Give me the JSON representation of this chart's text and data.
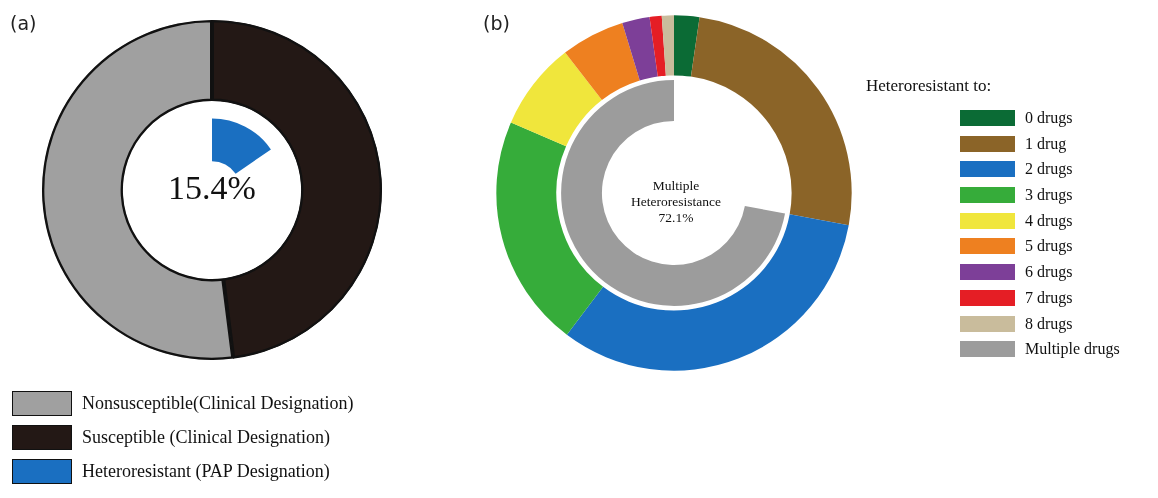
{
  "chart_data": [
    {
      "type": "donut",
      "title": "(a)",
      "categories": [
        "Nonsusceptible(Clinical Designation)",
        "Susceptible (Clinical Designation)",
        "Heteroresistant (PAP Designation)"
      ],
      "colors": [
        "#a0a0a0",
        "#231815",
        "#1a6fc1"
      ],
      "series": [
        {
          "values": [
            52,
            48,
            null
          ]
        },
        {
          "values": [
            null,
            null,
            15.4
          ],
          "value_labels": [
            null,
            null,
            "15.4%"
          ]
        }
      ],
      "legend": "bottom left"
    },
    {
      "type": "donut",
      "title": "(b)",
      "legend_title": "Heteroresistant to:",
      "categories": [
        "0 drugs",
        "1 drug",
        "2 drugs",
        "3 drugs",
        "4 drugs",
        "5 drugs",
        "6 drugs",
        "7 drugs",
        "8 drugs",
        "Multiple drugs"
      ],
      "colors": [
        "#0b6b35",
        "#8b6428",
        "#1a6fc1",
        "#36ac3a",
        "#f0e63c",
        "#ee8020",
        "#7d3f98",
        "#e51e25",
        "#c9bc9c",
        "#9c9c9c"
      ],
      "series": [
        {
          "values": [
            2.3,
            25.6,
            32.4,
            21.2,
            8.0,
            5.8,
            2.5,
            1.1,
            1.1,
            null
          ]
        },
        {
          "values": [
            null,
            null,
            null,
            null,
            null,
            null,
            null,
            null,
            null,
            72.1
          ],
          "value_labels": [
            null,
            null,
            null,
            null,
            null,
            null,
            null,
            null,
            null,
            "72.1%"
          ]
        }
      ],
      "legend": "right",
      "annotations": [
        "Multiple Heteroresistance"
      ]
    }
  ]
}
